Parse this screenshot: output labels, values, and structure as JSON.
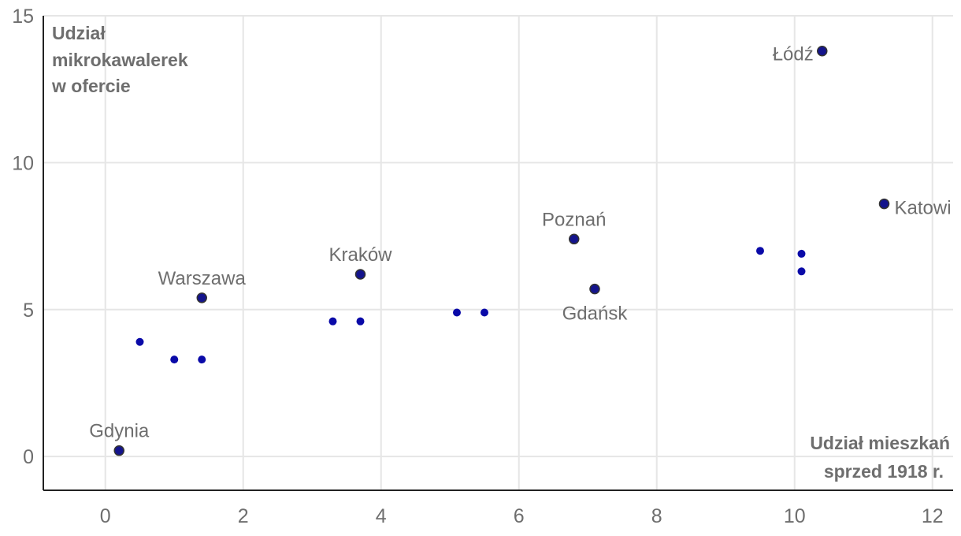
{
  "chart_data": {
    "type": "scatter",
    "xlabel_lines": [
      "Udział mieszkań",
      "sprzed 1918 r."
    ],
    "ylabel_lines": [
      "Udział",
      "mikrokawalerek",
      "w ofercie"
    ],
    "xlim": [
      -0.9,
      12.3
    ],
    "ylim": [
      -1.15,
      15
    ],
    "x_ticks": [
      0,
      2,
      4,
      6,
      8,
      10,
      12
    ],
    "y_ticks": [
      0,
      5,
      10,
      15
    ],
    "grid": true,
    "colors": {
      "point_fill": "#0a0aa8",
      "labeled_point_fill": "#14148c",
      "labeled_point_stroke": "#333333",
      "grid": "#e6e6e6",
      "text": "#6e6e6e"
    },
    "labeled_points": [
      {
        "label": "Łódź",
        "x": 10.4,
        "y": 13.8
      },
      {
        "label": "Katowi",
        "x": 11.3,
        "y": 8.6
      },
      {
        "label": "Poznań",
        "x": 6.8,
        "y": 7.4
      },
      {
        "label": "Gdańsk",
        "x": 7.1,
        "y": 5.7
      },
      {
        "label": "Kraków",
        "x": 3.7,
        "y": 6.2
      },
      {
        "label": "Warszawa",
        "x": 1.4,
        "y": 5.4
      },
      {
        "label": "Gdynia",
        "x": 0.2,
        "y": 0.2
      }
    ],
    "points": [
      {
        "x": 0.5,
        "y": 3.9
      },
      {
        "x": 1.0,
        "y": 3.3
      },
      {
        "x": 1.4,
        "y": 3.3
      },
      {
        "x": 3.3,
        "y": 4.6
      },
      {
        "x": 3.7,
        "y": 4.6
      },
      {
        "x": 5.1,
        "y": 4.9
      },
      {
        "x": 5.5,
        "y": 4.9
      },
      {
        "x": 9.5,
        "y": 7.0
      },
      {
        "x": 10.1,
        "y": 6.9
      },
      {
        "x": 10.1,
        "y": 6.3
      }
    ]
  }
}
